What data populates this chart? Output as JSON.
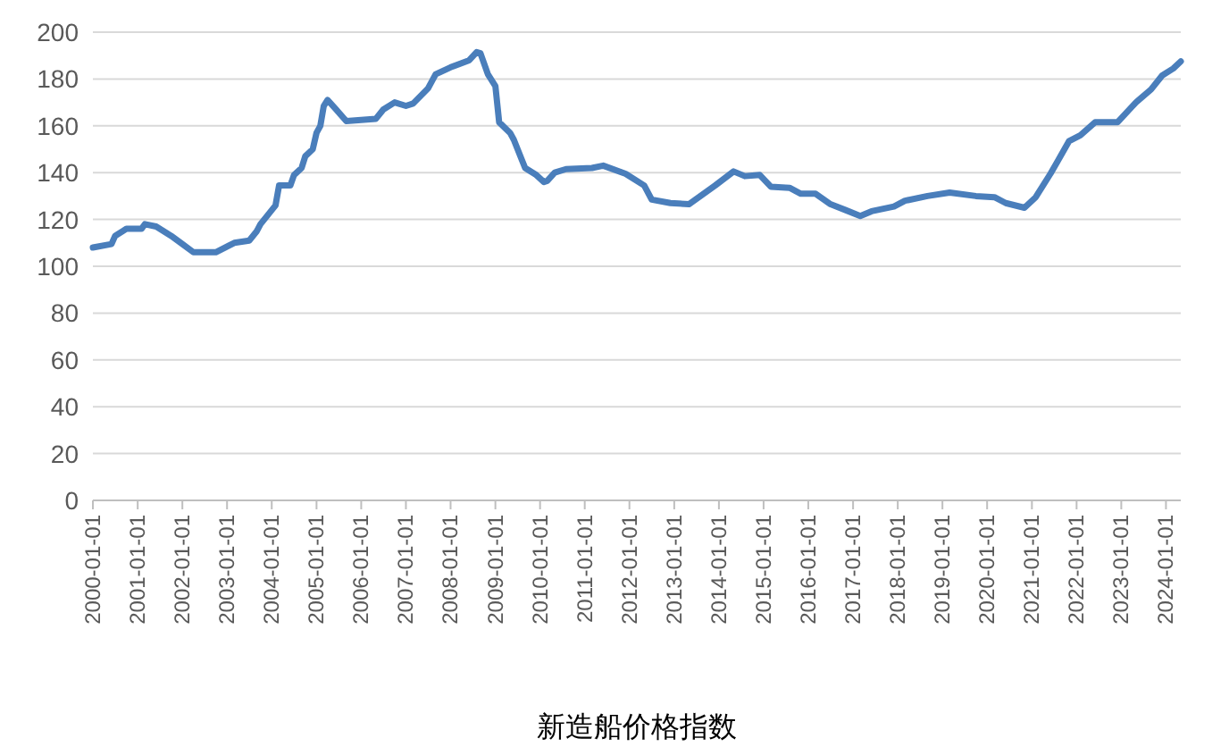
{
  "chart_data": {
    "type": "line",
    "title": "新造船价格指数",
    "x": [
      "2000-01",
      "2000-06",
      "2000-07",
      "2000-10",
      "2001-02",
      "2001-03",
      "2001-06",
      "2001-08",
      "2001-10",
      "2002-01",
      "2002-04",
      "2002-10",
      "2003-03",
      "2003-07",
      "2003-09",
      "2003-10",
      "2004-02",
      "2004-03",
      "2004-06",
      "2004-07",
      "2004-09",
      "2004-10",
      "2004-12",
      "2005-01",
      "2005-02",
      "2005-03",
      "2005-04",
      "2005-06",
      "2005-09",
      "2006-05",
      "2006-07",
      "2006-10",
      "2007-01",
      "2007-03",
      "2007-07",
      "2007-09",
      "2008-01",
      "2008-06",
      "2008-08",
      "2008-09",
      "2008-11",
      "2009-01",
      "2009-02",
      "2009-05",
      "2009-06",
      "2009-08",
      "2009-09",
      "2009-12",
      "2010-02",
      "2010-03",
      "2010-05",
      "2010-08",
      "2011-03",
      "2011-06",
      "2011-12",
      "2012-05",
      "2012-07",
      "2012-12",
      "2013-05",
      "2013-12",
      "2014-05",
      "2014-08",
      "2014-12",
      "2015-03",
      "2015-08",
      "2015-11",
      "2016-03",
      "2016-07",
      "2016-11",
      "2017-03",
      "2017-06",
      "2017-12",
      "2018-03",
      "2018-09",
      "2019-03",
      "2019-10",
      "2020-03",
      "2020-06",
      "2020-11",
      "2021-02",
      "2021-06",
      "2021-08",
      "2021-11",
      "2022-02",
      "2022-06",
      "2022-12",
      "2023-05",
      "2023-09",
      "2023-12",
      "2024-03",
      "2024-05"
    ],
    "series": [
      {
        "color": "#4a7ebb",
        "values": [
          108,
          109.5,
          113,
          116,
          116,
          118,
          117,
          115,
          113,
          109.5,
          106,
          106,
          110,
          111,
          115,
          118,
          126,
          134.5,
          134.5,
          139,
          142,
          147,
          150,
          157,
          160,
          168.5,
          171,
          167.5,
          162,
          163,
          167,
          170,
          168.5,
          169.5,
          176,
          182,
          185,
          188,
          191.5,
          191,
          182,
          177,
          161.5,
          157,
          154,
          146,
          142,
          139,
          136,
          136.5,
          140,
          141.5,
          142,
          143,
          139.5,
          134.5,
          128.5,
          127,
          126.5,
          134.5,
          140.5,
          138.5,
          139,
          134,
          133.5,
          131,
          131,
          126.5,
          124,
          121.5,
          123.5,
          125.5,
          128,
          130,
          131.5,
          130,
          129.5,
          127,
          125,
          129.5,
          139.5,
          145,
          153.5,
          156,
          161.5,
          161.5,
          170,
          175.5,
          181.5,
          184.5,
          187.5
        ]
      }
    ],
    "xlim": [
      "2000-01",
      "2024-05"
    ],
    "xticks": [
      {
        "value": "2000-01-01",
        "label": "2000-01-01"
      },
      {
        "value": "2001-01-01",
        "label": "2001-01-01"
      },
      {
        "value": "2002-01-01",
        "label": "2002-01-01"
      },
      {
        "value": "2003-01-01",
        "label": "2003-01-01"
      },
      {
        "value": "2004-01-01",
        "label": "2004-01-01"
      },
      {
        "value": "2005-01-01",
        "label": "2005-01-01"
      },
      {
        "value": "2006-01-01",
        "label": "2006-01-01"
      },
      {
        "value": "2007-01-01",
        "label": "2007-01-01"
      },
      {
        "value": "2008-01-01",
        "label": "2008-01-01"
      },
      {
        "value": "2009-01-01",
        "label": "2009-01-01"
      },
      {
        "value": "2010-01-01",
        "label": "2010-01-01"
      },
      {
        "value": "2011-01-01",
        "label": "2011-01-01"
      },
      {
        "value": "2012-01-01",
        "label": "2012-01-01"
      },
      {
        "value": "2013-01-01",
        "label": "2013-01-01"
      },
      {
        "value": "2014-01-01",
        "label": "2014-01-01"
      },
      {
        "value": "2015-01-01",
        "label": "2015-01-01"
      },
      {
        "value": "2016-01-01",
        "label": "2016-01-01"
      },
      {
        "value": "2017-01-01",
        "label": "2017-01-01"
      },
      {
        "value": "2018-01-01",
        "label": "2018-01-01"
      },
      {
        "value": "2019-01-01",
        "label": "2019-01-01"
      },
      {
        "value": "2020-01-01",
        "label": "2020-01-01"
      },
      {
        "value": "2021-01-01",
        "label": "2021-01-01"
      },
      {
        "value": "2022-01-01",
        "label": "2022-01-01"
      },
      {
        "value": "2023-01-01",
        "label": "2023-01-01"
      },
      {
        "value": "2024-01-01",
        "label": "2024-01-01"
      }
    ],
    "ylim": [
      0,
      200
    ],
    "yticks": [
      0,
      20,
      40,
      60,
      80,
      100,
      120,
      140,
      160,
      180,
      200
    ],
    "grid": "y",
    "marker": "none",
    "line_style": "solid"
  }
}
